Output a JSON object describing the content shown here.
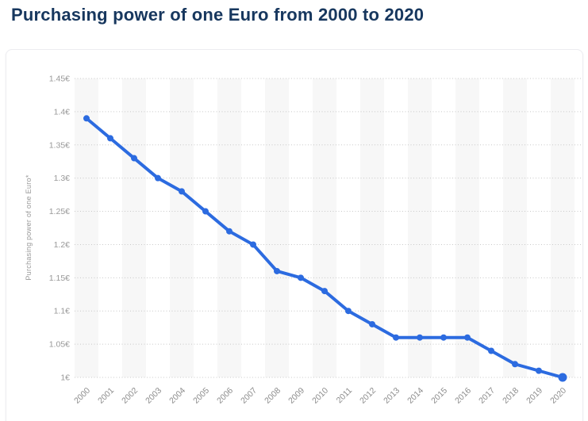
{
  "page": {
    "title": "Purchasing power of one Euro from 2000 to 2020"
  },
  "colors": {
    "accent_line": "#2c6be0",
    "title_text": "#17375e",
    "axis_text": "#999999",
    "xaxis_text": "#8c8c8c",
    "gridline": "#c8c8c8",
    "band": "#f7f7f7"
  },
  "chart_data": {
    "type": "line",
    "title": "Purchasing power of one Euro from 2000 to 2020",
    "categories": [
      "2000",
      "2001",
      "2002",
      "2003",
      "2004",
      "2005",
      "2006",
      "2007",
      "2008",
      "2009",
      "2010",
      "2011",
      "2012",
      "2013",
      "2014",
      "2015",
      "2016",
      "2017",
      "2018",
      "2019",
      "2020"
    ],
    "series": [
      {
        "name": "Purchasing power of one Euro",
        "values": [
          1.39,
          1.36,
          1.33,
          1.3,
          1.28,
          1.25,
          1.22,
          1.2,
          1.16,
          1.15,
          1.13,
          1.1,
          1.08,
          1.06,
          1.06,
          1.06,
          1.06,
          1.04,
          1.02,
          1.01,
          1.0
        ]
      }
    ],
    "xlabel": "",
    "ylabel": "Purchasing power of one Euro*",
    "ylim": [
      1.0,
      1.45
    ],
    "ytick_step": 0.05,
    "yticks": [
      "1.45€",
      "1.4€",
      "1.35€",
      "1.3€",
      "1.25€",
      "1.2€",
      "1.15€",
      "1.1€",
      "1.05€",
      "1€"
    ],
    "grid": "horizontal-dotted",
    "legend": "none",
    "marker": "circle"
  }
}
